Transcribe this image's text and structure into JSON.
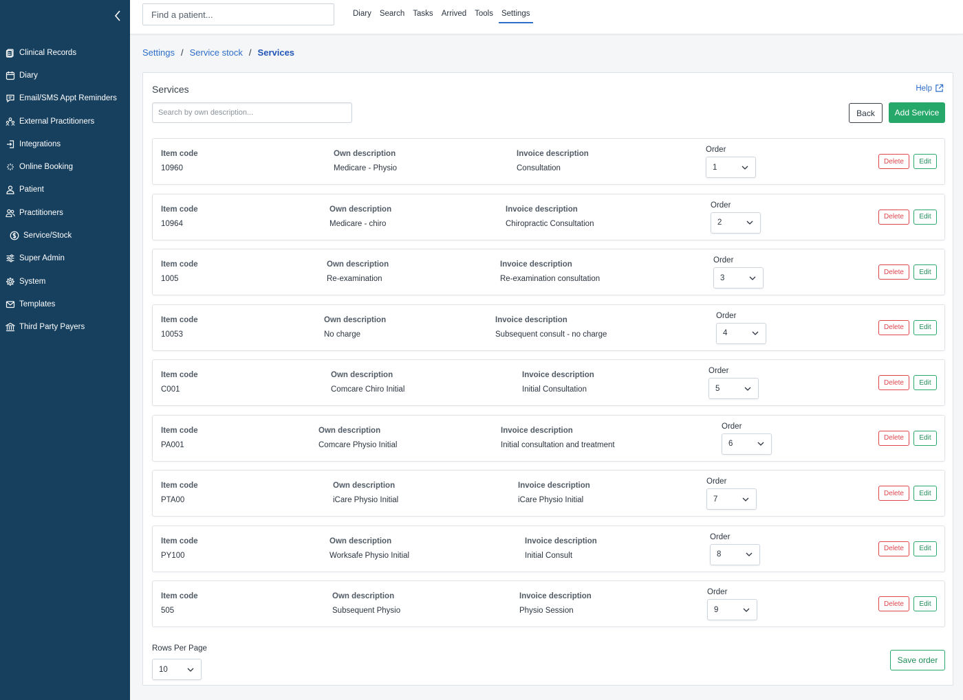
{
  "sidebar": {
    "items": [
      {
        "label": "Clinical Records",
        "icon": "clipboard-icon"
      },
      {
        "label": "Diary",
        "icon": "calendar-icon"
      },
      {
        "label": "Email/SMS Appt Reminders",
        "icon": "chat-icon"
      },
      {
        "label": "External Practitioners",
        "icon": "people-network-icon"
      },
      {
        "label": "Integrations",
        "icon": "login-icon"
      },
      {
        "label": "Online Booking",
        "icon": "sparkle-icon"
      },
      {
        "label": "Patient",
        "icon": "user-icon"
      },
      {
        "label": "Practitioners",
        "icon": "users-icon"
      },
      {
        "label": "Service/Stock",
        "icon": "dollar-circle-icon"
      },
      {
        "label": "Super Admin",
        "icon": "sliders-icon"
      },
      {
        "label": "System",
        "icon": "gear-icon"
      },
      {
        "label": "Templates",
        "icon": "envelope-icon"
      },
      {
        "label": "Third Party Payers",
        "icon": "bank-icon"
      }
    ]
  },
  "topbar": {
    "find_placeholder": "Find a patient...",
    "nav": [
      "Diary",
      "Search",
      "Tasks",
      "Arrived",
      "Tools",
      "Settings"
    ],
    "active": "Settings"
  },
  "breadcrumb": {
    "items": [
      "Settings",
      "Service stock"
    ],
    "current": "Services"
  },
  "panel": {
    "title": "Services",
    "help_label": "Help",
    "search_placeholder": "Search by own description...",
    "back_label": "Back",
    "add_label": "Add Service",
    "headers": {
      "item_code": "Item code",
      "own_description": "Own description",
      "invoice_description": "Invoice description",
      "order": "Order"
    },
    "delete_label": "Delete",
    "edit_label": "Edit",
    "rows": [
      {
        "item_code": "10960",
        "own_description": "Medicare - Physio",
        "invoice_description": "Consultation",
        "order": "1"
      },
      {
        "item_code": "10964",
        "own_description": "Medicare - chiro",
        "invoice_description": "Chiropractic Consultation",
        "order": "2"
      },
      {
        "item_code": "1005",
        "own_description": "Re-examination",
        "invoice_description": "Re-examination consultation",
        "order": "3"
      },
      {
        "item_code": "10053",
        "own_description": "No charge",
        "invoice_description": "Subsequent consult - no charge",
        "order": "4"
      },
      {
        "item_code": "C001",
        "own_description": "Comcare Chiro Initial",
        "invoice_description": "Initial Consultation",
        "order": "5"
      },
      {
        "item_code": "PA001",
        "own_description": "Comcare Physio Initial",
        "invoice_description": "Initial consultation and treatment",
        "order": "6"
      },
      {
        "item_code": "PTA00",
        "own_description": "iCare Physio Initial",
        "invoice_description": "iCare Physio Initial",
        "order": "7"
      },
      {
        "item_code": "PY100",
        "own_description": "Worksafe Physio Initial",
        "invoice_description": "Initial Consult",
        "order": "8"
      },
      {
        "item_code": "505",
        "own_description": "Subsequent Physio",
        "invoice_description": "Physio Session",
        "order": "9"
      }
    ],
    "rows_per_page_label": "Rows Per Page",
    "rows_per_page": "10",
    "save_order_label": "Save order"
  },
  "colors": {
    "sidebar_bg": "#17405f",
    "link": "#2d6ec9",
    "primary_green": "#27a86b",
    "danger_red": "#e0444b"
  }
}
